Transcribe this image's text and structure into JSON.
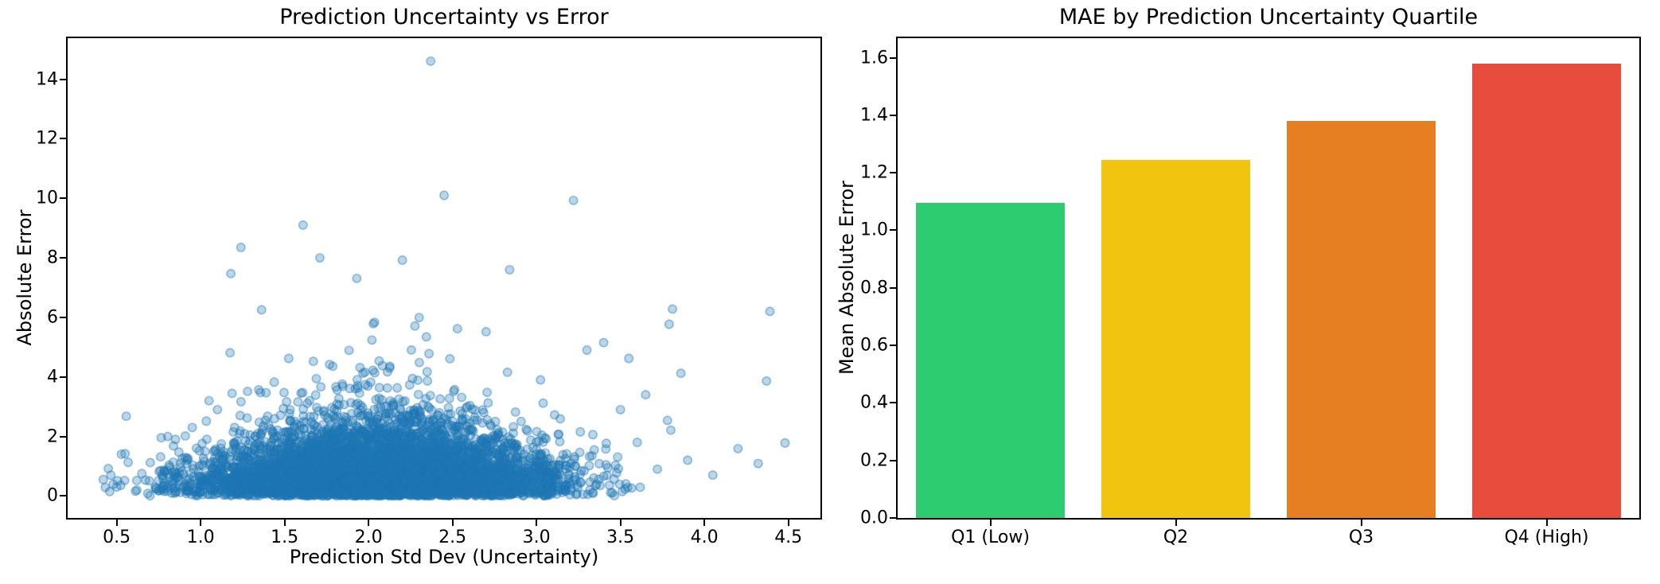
{
  "figure": {
    "background": "#ffffff"
  },
  "chart_data": [
    {
      "type": "scatter",
      "title": "Prediction Uncertainty vs Error",
      "xlabel": "Prediction Std Dev (Uncertainty)",
      "ylabel": "Absolute Error",
      "xlim": [
        0.208,
        4.691
      ],
      "ylim": [
        -0.74,
        15.38
      ],
      "xtick_values": [
        0.5,
        1.0,
        1.5,
        2.0,
        2.5,
        3.0,
        3.5,
        4.0,
        4.5
      ],
      "xtick_labels": [
        "0.5",
        "1.0",
        "1.5",
        "2.0",
        "2.5",
        "3.0",
        "3.5",
        "4.0",
        "4.5"
      ],
      "ytick_values": [
        0,
        2,
        4,
        6,
        8,
        10,
        12,
        14
      ],
      "ytick_labels": [
        "0",
        "2",
        "4",
        "6",
        "8",
        "10",
        "12",
        "14"
      ],
      "grid": false,
      "marker": {
        "color": "#1f77b4",
        "fill_alpha": 0.3,
        "edge_alpha": 0.55,
        "radius_px": 5.2
      },
      "cloud": {
        "n": 6000,
        "seed": 42,
        "x_mean": 2.05,
        "x_sd": 0.52,
        "x_min": 0.42,
        "x_max": 3.62,
        "y_sigma_base": 0.5,
        "y_sigma_peak": 0.62,
        "y_peak_x": 2.1,
        "y_peak_width": 0.85,
        "tail_frac": 0.1,
        "tail_mult": 2.0
      },
      "outliers": [
        [
          2.37,
          14.61
        ],
        [
          2.45,
          10.1
        ],
        [
          3.22,
          9.93
        ],
        [
          1.61,
          9.1
        ],
        [
          1.24,
          8.35
        ],
        [
          1.71,
          8.0
        ],
        [
          2.84,
          7.6
        ],
        [
          1.18,
          7.47
        ],
        [
          1.93,
          7.31
        ],
        [
          3.81,
          6.28
        ],
        [
          4.39,
          6.2
        ],
        [
          3.79,
          5.77
        ],
        [
          3.4,
          5.15
        ],
        [
          3.3,
          4.9
        ],
        [
          3.55,
          4.62
        ],
        [
          3.86,
          4.12
        ],
        [
          4.37,
          3.86
        ],
        [
          3.65,
          3.4
        ],
        [
          3.5,
          2.9
        ],
        [
          3.78,
          2.54
        ],
        [
          3.8,
          2.21
        ],
        [
          3.6,
          1.8
        ],
        [
          4.48,
          1.78
        ],
        [
          4.2,
          1.59
        ],
        [
          4.32,
          1.09
        ],
        [
          3.9,
          1.2
        ],
        [
          3.72,
          0.9
        ],
        [
          4.05,
          0.7
        ],
        [
          0.42,
          0.55
        ],
        [
          0.45,
          0.92
        ],
        [
          0.5,
          0.3
        ],
        [
          0.55,
          1.42
        ],
        [
          0.62,
          0.2
        ],
        [
          0.65,
          0.75
        ],
        [
          0.7,
          1.12
        ],
        [
          0.75,
          0.52
        ],
        [
          0.8,
          0.25
        ],
        [
          0.85,
          1.9
        ],
        [
          0.9,
          0.33
        ],
        [
          0.95,
          2.3
        ],
        [
          1.0,
          0.15
        ],
        [
          1.05,
          3.2
        ],
        [
          1.1,
          2.9
        ],
        [
          1.12,
          1.6
        ]
      ]
    },
    {
      "type": "bar",
      "title": "MAE by Prediction Uncertainty Quartile",
      "ylabel": "Mean Absolute Error",
      "xlabel": "",
      "categories": [
        "Q1 (Low)",
        "Q2",
        "Q3",
        "Q4 (High)"
      ],
      "values": [
        1.095,
        1.245,
        1.38,
        1.58
      ],
      "colors": [
        "#2ecc71",
        "#f1c40f",
        "#e67e22",
        "#e74c3c"
      ],
      "ylim": [
        0,
        1.668
      ],
      "ytick_values": [
        0.0,
        0.2,
        0.4,
        0.6,
        0.8,
        1.0,
        1.2,
        1.4,
        1.6
      ],
      "ytick_labels": [
        "0.0",
        "0.2",
        "0.4",
        "0.6",
        "0.8",
        "1.0",
        "1.2",
        "1.4",
        "1.6"
      ],
      "grid": false,
      "legend": "none",
      "bar_width_frac": 0.8
    }
  ]
}
